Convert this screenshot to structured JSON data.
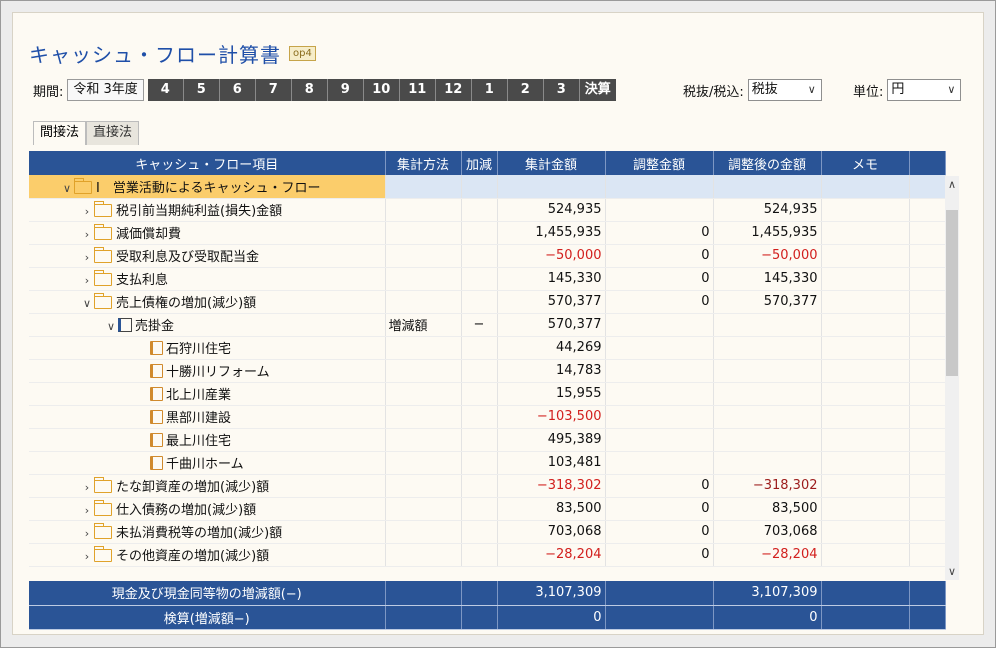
{
  "title": "キャッシュ・フロー計算書",
  "badge": "op4",
  "period": {
    "label": "期間:",
    "year": "令和 3年度",
    "months": [
      "4",
      "5",
      "6",
      "7",
      "8",
      "9",
      "10",
      "11",
      "12",
      "1",
      "2",
      "3",
      "決算"
    ]
  },
  "tax": {
    "label": "税抜/税込:",
    "value": "税抜"
  },
  "unit": {
    "label": "単位:",
    "value": "円"
  },
  "tabs": [
    "間接法",
    "直接法"
  ],
  "columns": [
    "キャッシュ・フロー項目",
    "集計方法",
    "加減",
    "集計金額",
    "調整金額",
    "調整後の金額",
    "メモ"
  ],
  "rows": [
    {
      "label": "Ⅰ　営業活動によるキャッシュ・フロー",
      "method": "",
      "sign": "",
      "amount": "",
      "adj": "",
      "after": "",
      "memo": ""
    },
    {
      "label": "税引前当期純利益(損失)金額",
      "method": "",
      "sign": "",
      "amount": "524,935",
      "adj": "",
      "after": "524,935",
      "memo": ""
    },
    {
      "label": "減価償却費",
      "method": "",
      "sign": "",
      "amount": "1,455,935",
      "adj": "0",
      "after": "1,455,935",
      "memo": ""
    },
    {
      "label": "受取利息及び受取配当金",
      "method": "",
      "sign": "",
      "amount": "−50,000",
      "adj": "0",
      "after": "−50,000",
      "memo": ""
    },
    {
      "label": "支払利息",
      "method": "",
      "sign": "",
      "amount": "145,330",
      "adj": "0",
      "after": "145,330",
      "memo": ""
    },
    {
      "label": "売上債権の増加(減少)額",
      "method": "",
      "sign": "",
      "amount": "570,377",
      "adj": "0",
      "after": "570,377",
      "memo": ""
    },
    {
      "label": "売掛金",
      "method": "増減額",
      "sign": "−",
      "amount": "570,377",
      "adj": "",
      "after": "",
      "memo": ""
    },
    {
      "label": "石狩川住宅",
      "method": "",
      "sign": "",
      "amount": "44,269",
      "adj": "",
      "after": "",
      "memo": ""
    },
    {
      "label": "十勝川リフォーム",
      "method": "",
      "sign": "",
      "amount": "14,783",
      "adj": "",
      "after": "",
      "memo": ""
    },
    {
      "label": "北上川産業",
      "method": "",
      "sign": "",
      "amount": "15,955",
      "adj": "",
      "after": "",
      "memo": ""
    },
    {
      "label": "黒部川建設",
      "method": "",
      "sign": "",
      "amount": "−103,500",
      "adj": "",
      "after": "",
      "memo": ""
    },
    {
      "label": "最上川住宅",
      "method": "",
      "sign": "",
      "amount": "495,389",
      "adj": "",
      "after": "",
      "memo": ""
    },
    {
      "label": "千曲川ホーム",
      "method": "",
      "sign": "",
      "amount": "103,481",
      "adj": "",
      "after": "",
      "memo": ""
    },
    {
      "label": "たな卸資産の増加(減少)額",
      "method": "",
      "sign": "",
      "amount": "−318,302",
      "adj": "0",
      "after": "−318,302",
      "memo": ""
    },
    {
      "label": "仕入債務の増加(減少)額",
      "method": "",
      "sign": "",
      "amount": "83,500",
      "adj": "0",
      "after": "83,500",
      "memo": ""
    },
    {
      "label": "未払消費税等の増加(減少)額",
      "method": "",
      "sign": "",
      "amount": "703,068",
      "adj": "0",
      "after": "703,068",
      "memo": ""
    },
    {
      "label": "その他資産の増加(減少)額",
      "method": "",
      "sign": "",
      "amount": "−28,204",
      "adj": "0",
      "after": "−28,204",
      "memo": ""
    }
  ],
  "footer": [
    {
      "label": "現金及び現金同等物の増減額(−)",
      "amount": "3,107,309",
      "after": "3,107,309"
    },
    {
      "label": "検算(増減額−)",
      "amount": "0",
      "after": "0"
    }
  ],
  "colors": {
    "header": "#2a5496",
    "selected": "#fbcd6b",
    "negative": "#d2201e",
    "title": "#1f4fa8"
  },
  "icons": [
    "folder-icon",
    "folder-open-icon",
    "account-icon",
    "sub-account-icon",
    "chevron-right-icon",
    "chevron-down-icon"
  ]
}
